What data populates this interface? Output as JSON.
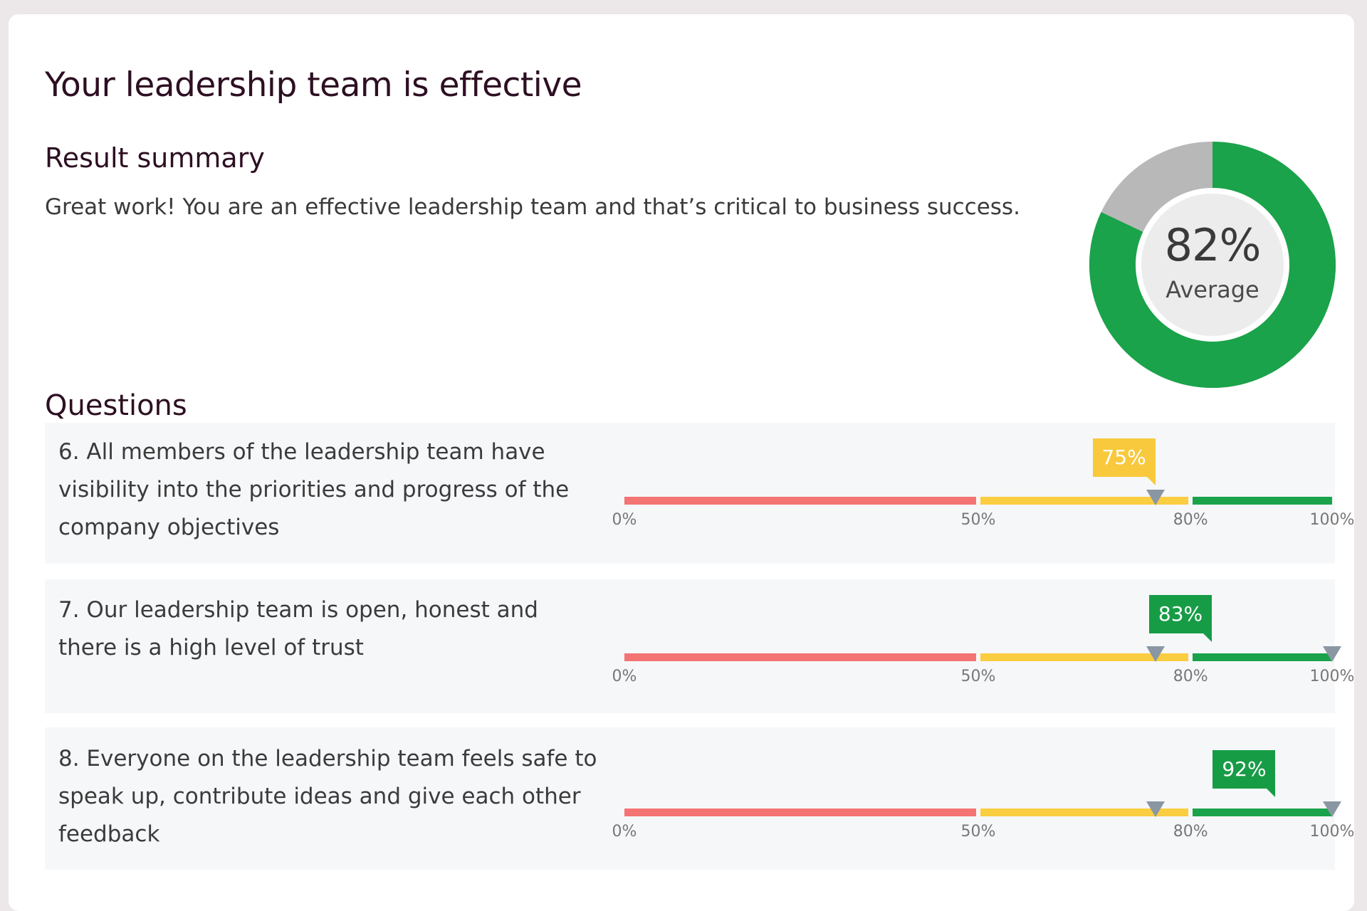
{
  "page": {
    "title": "Your leadership team is effective"
  },
  "summary": {
    "heading": "Result summary",
    "text": "Great work! You are an effective leadership team and that’s critical to business success."
  },
  "donut": {
    "value_text": "82%",
    "value": 82,
    "label": "Average",
    "color_filled": "#1aa34a",
    "color_remaining": "#b8b8b8",
    "color_inner": "#ececec"
  },
  "questions": {
    "heading": "Questions",
    "scale_ticks": [
      "0%",
      "50%",
      "80%",
      "100%"
    ],
    "zones": [
      {
        "from": 0,
        "to": 50,
        "color": "#f47373"
      },
      {
        "from": 50,
        "to": 80,
        "color": "#fbcd40"
      },
      {
        "from": 80,
        "to": 100,
        "color": "#1aa34a"
      }
    ],
    "items": [
      {
        "text": "6. All members of the leadership team have visibility into the priorities and progress of the company objectives",
        "score_text": "75%",
        "score": 75,
        "score_color": "yellow",
        "markers": [
          75
        ]
      },
      {
        "text": "7. Our leadership team is open, honest and there is a high level of trust",
        "score_text": "83%",
        "score": 83,
        "score_color": "green",
        "markers": [
          75,
          100
        ]
      },
      {
        "text": "8. Everyone on the leadership team feels safe to speak up, contribute ideas and give each other feedback",
        "score_text": "92%",
        "score": 92,
        "score_color": "green",
        "markers": [
          75,
          100
        ]
      }
    ]
  }
}
